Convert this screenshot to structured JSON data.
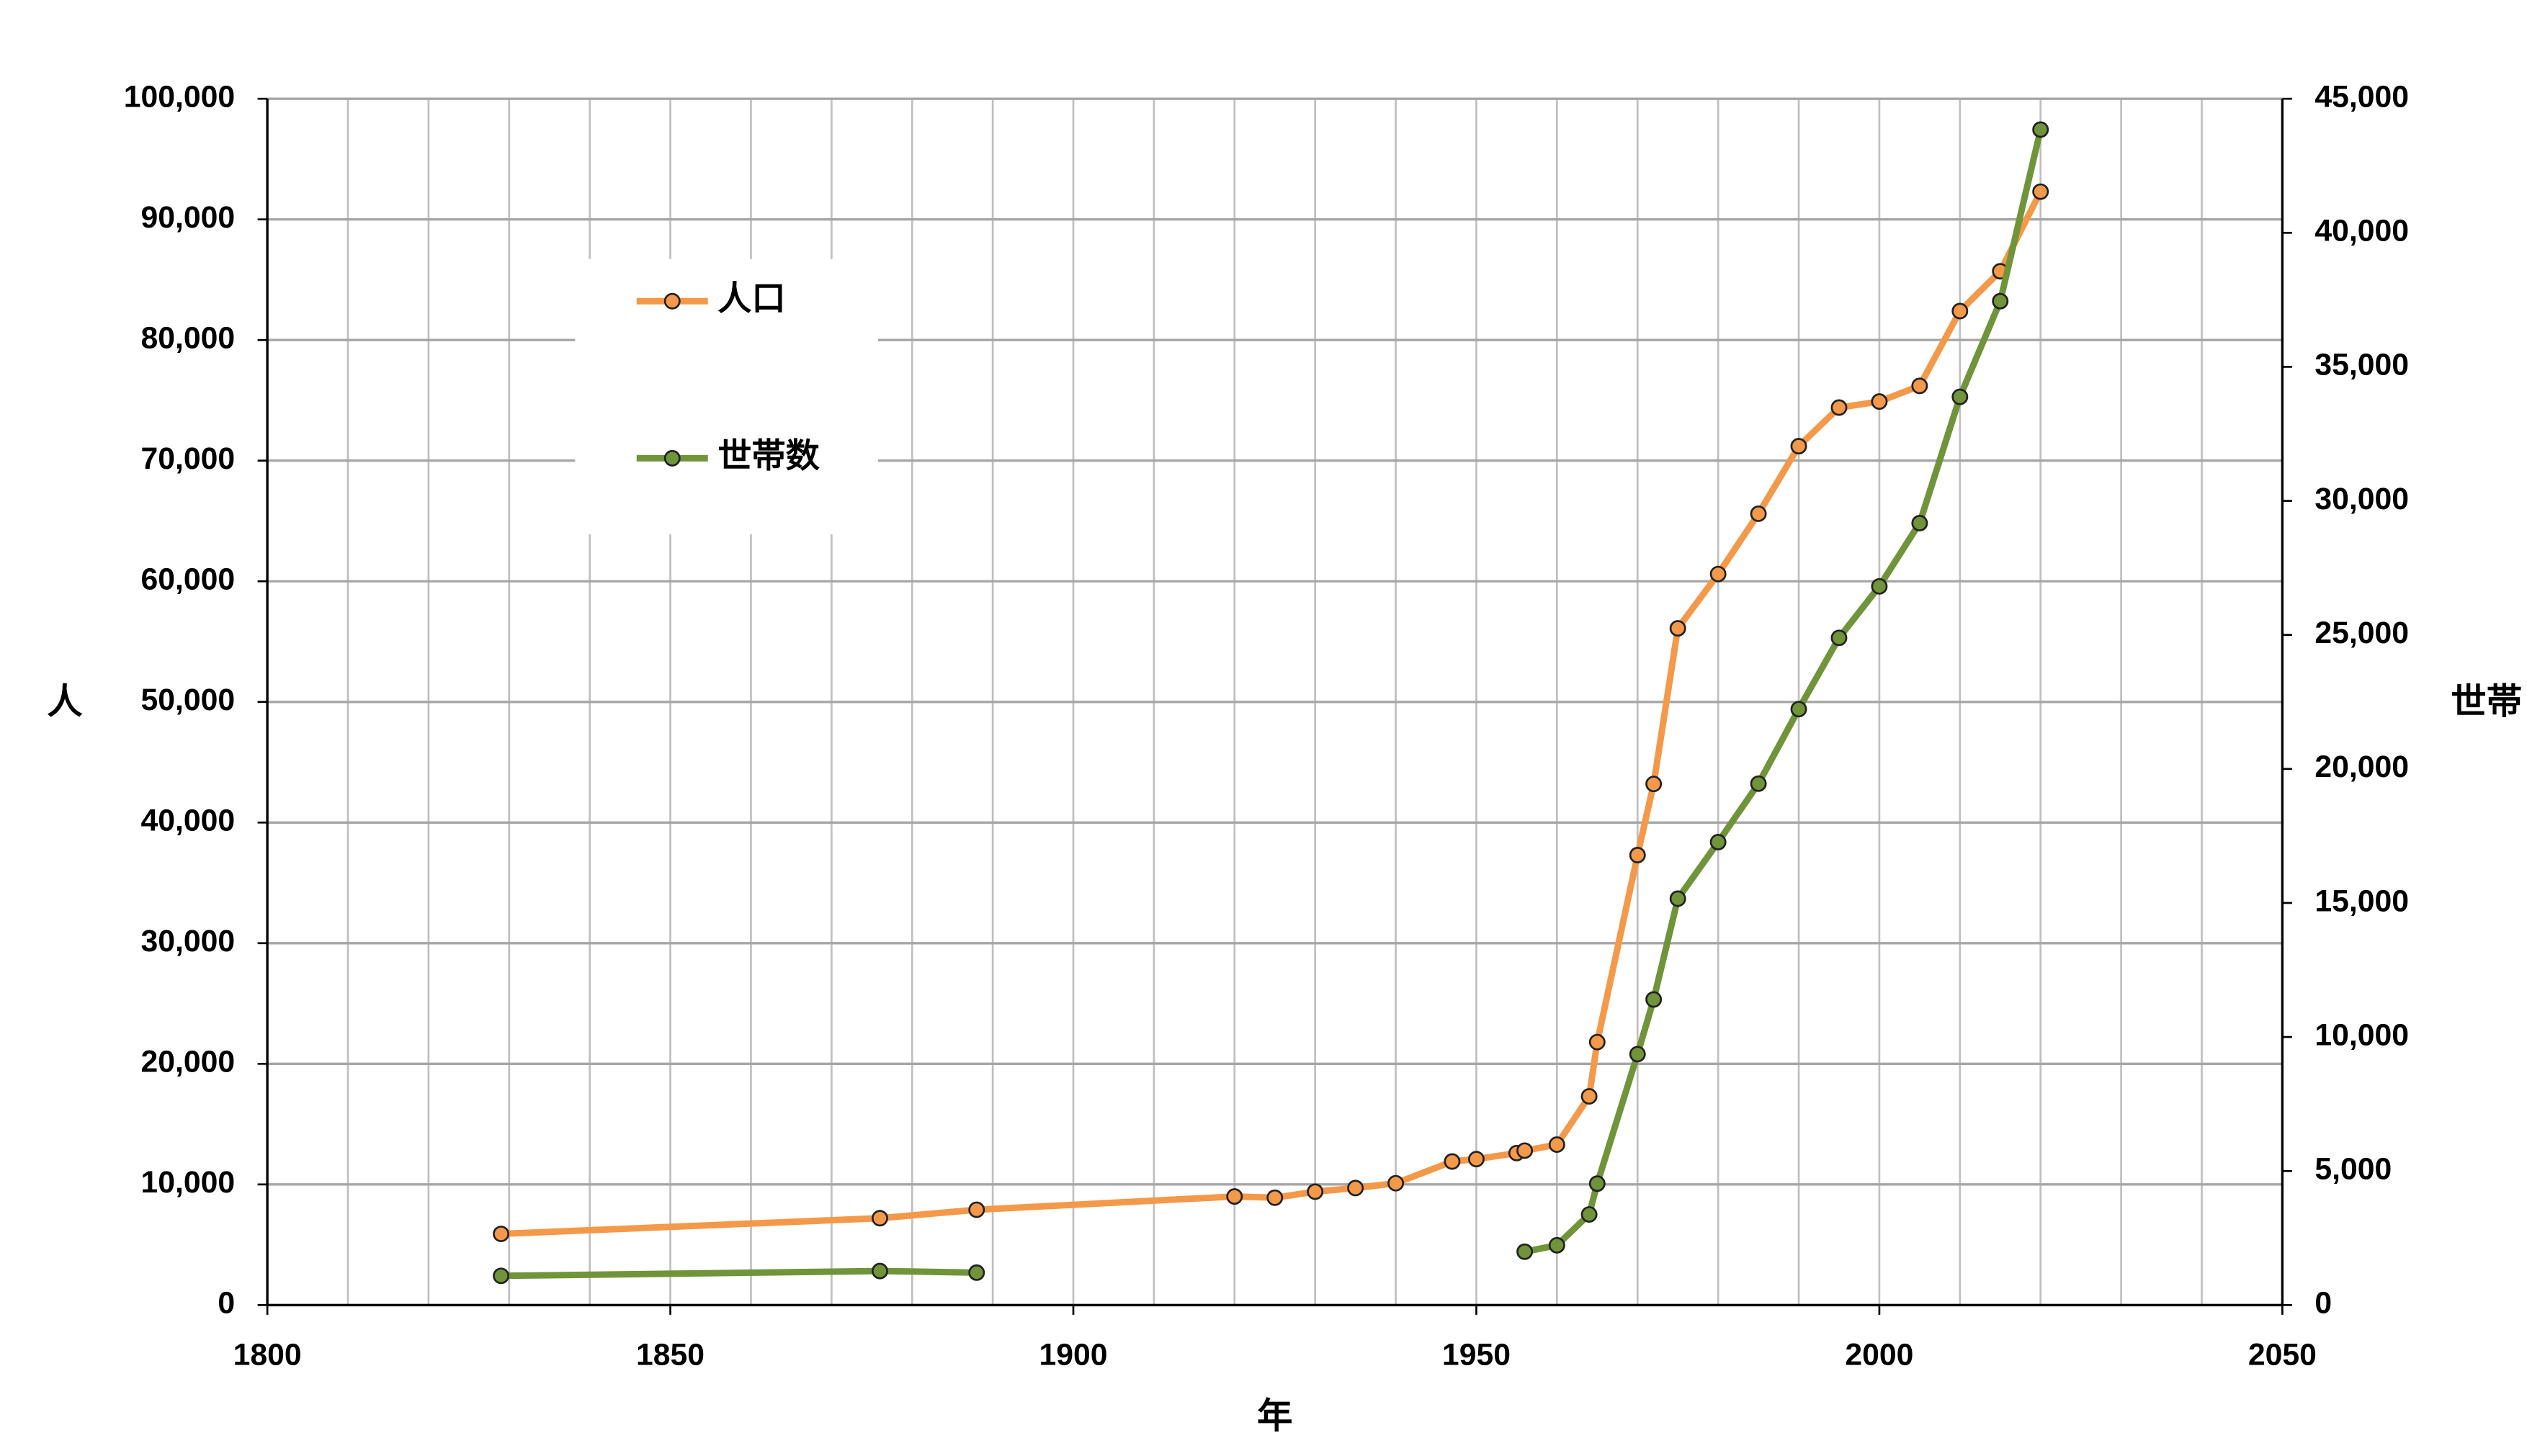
{
  "chart_data": {
    "type": "line",
    "x_label": "年",
    "y_label": "人",
    "y2_label": "世帯",
    "x": [
      1829,
      1876,
      1888,
      1920,
      1925,
      1930,
      1935,
      1940,
      1947,
      1950,
      1955,
      1956,
      1960,
      1964,
      1965,
      1970,
      1972,
      1975,
      1980,
      1985,
      1990,
      1995,
      2000,
      2005,
      2010,
      2015,
      2020
    ],
    "series": [
      {
        "name": "人口",
        "color": "#f4994a",
        "axis": "y",
        "values": [
          5900,
          7200,
          7900,
          9000,
          8900,
          9400,
          9700,
          10100,
          11900,
          12100,
          12600,
          12800,
          13300,
          17300,
          21800,
          37300,
          43200,
          56100,
          60600,
          65600,
          71200,
          74400,
          74900,
          76200,
          82400,
          85700,
          92300
        ]
      },
      {
        "name": "世帯数",
        "color": "#70943a",
        "axis": "y2",
        "values": [
          1090,
          1270,
          1210,
          null,
          null,
          null,
          null,
          null,
          null,
          null,
          null,
          1990,
          2230,
          3380,
          4530,
          9360,
          11400,
          15160,
          17270,
          19450,
          22230,
          24890,
          26810,
          29170,
          33880,
          37450,
          43850
        ]
      }
    ],
    "xlim": [
      1800,
      2050
    ],
    "xticks": [
      1800,
      1850,
      1900,
      1950,
      2000,
      2050
    ],
    "ylim": [
      0,
      100000
    ],
    "yticks": [
      0,
      {
        "value": 10000,
        "label": "10,000"
      },
      {
        "value": 20000,
        "label": "20,000"
      },
      {
        "value": 30000,
        "label": "30,000"
      },
      {
        "value": 40000,
        "label": "40,000"
      },
      {
        "value": 50000,
        "label": "50,000"
      },
      {
        "value": 60000,
        "label": "60,000"
      },
      {
        "value": 70000,
        "label": "70,000"
      },
      {
        "value": 80000,
        "label": "80,000"
      },
      {
        "value": 90000,
        "label": "90,000"
      },
      {
        "value": 100000,
        "label": "100,000"
      }
    ],
    "y2lim": [
      0,
      45000
    ],
    "y2ticks": [
      0,
      {
        "value": 5000,
        "label": "5,000"
      },
      {
        "value": 10000,
        "label": "10,000"
      },
      {
        "value": 15000,
        "label": "15,000"
      },
      {
        "value": 20000,
        "label": "20,000"
      },
      {
        "value": 25000,
        "label": "25,000"
      },
      {
        "value": 30000,
        "label": "30,000"
      },
      {
        "value": 35000,
        "label": "35,000"
      },
      {
        "value": 40000,
        "label": "40,000"
      },
      {
        "value": 45000,
        "label": "45,000"
      }
    ],
    "grid": true
  }
}
